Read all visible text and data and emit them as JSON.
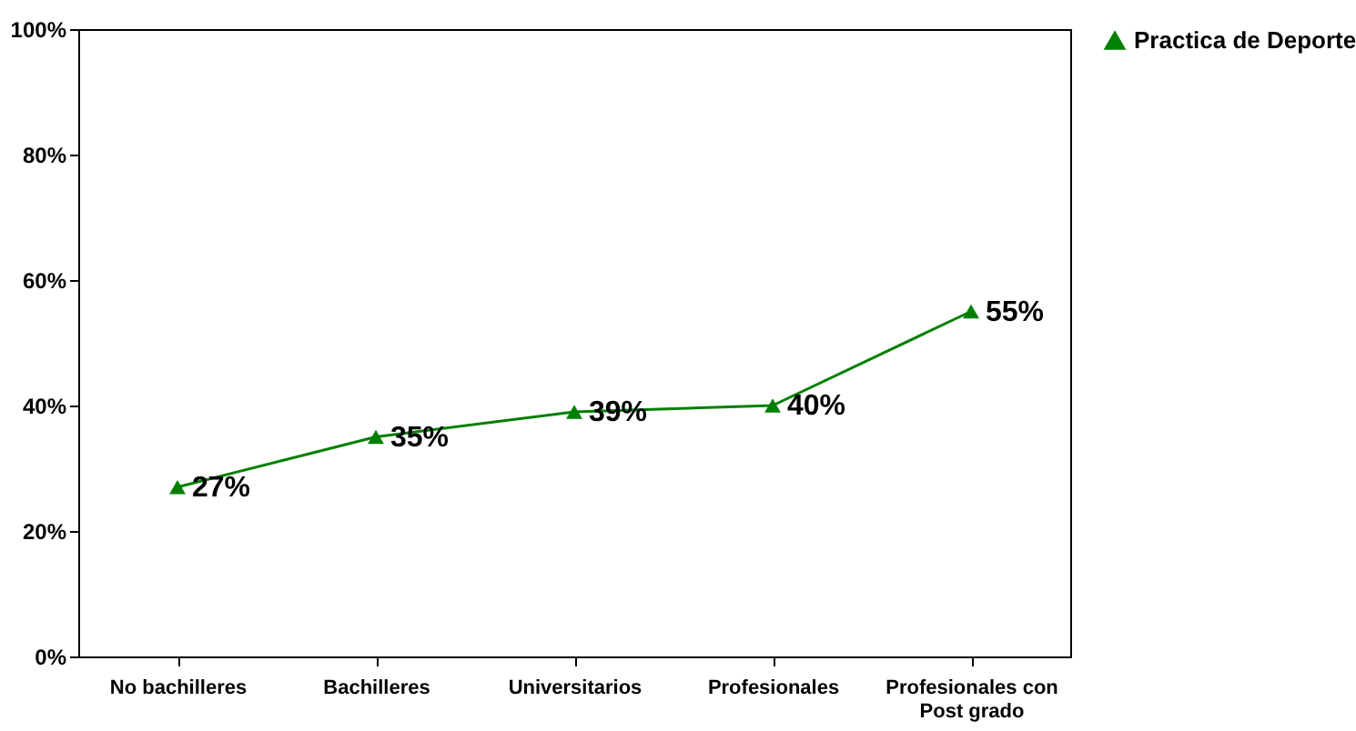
{
  "chart_data": {
    "type": "line",
    "categories": [
      "No bachilleres",
      "Bachilleres",
      "Universitarios",
      "Profesionales",
      "Profesionales con Post grado"
    ],
    "series": [
      {
        "name": "Practica de Deporte",
        "color": "#008000",
        "values": [
          27,
          35,
          39,
          40,
          55
        ],
        "value_labels": [
          "27%",
          "35%",
          "39%",
          "40%",
          "55%"
        ]
      }
    ],
    "ylim": [
      0,
      100
    ],
    "yticks": [
      {
        "value": 0,
        "label": "0%"
      },
      {
        "value": 20,
        "label": "20%"
      },
      {
        "value": 40,
        "label": "40%"
      },
      {
        "value": 60,
        "label": "60%"
      },
      {
        "value": 80,
        "label": "80%"
      },
      {
        "value": 100,
        "label": "100%"
      }
    ],
    "grid": false,
    "legend": "right",
    "marker": "triangle",
    "line_style": "solid"
  }
}
